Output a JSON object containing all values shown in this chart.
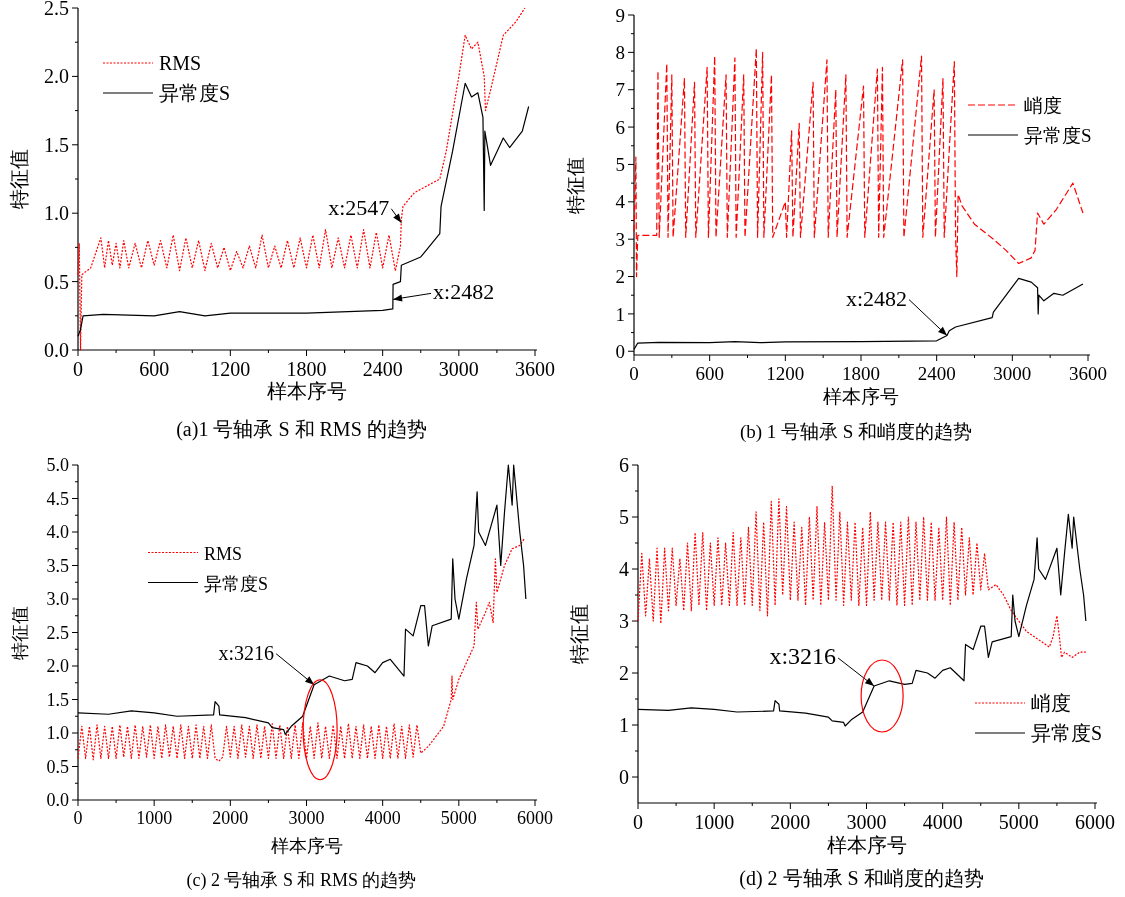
{
  "chart_data": [
    {
      "type": "line",
      "title": "(a)1 号轴承 S 和 RMS 的趋势",
      "xlabel": "样本序号",
      "ylabel": "特征值",
      "xlim": [
        0,
        3600
      ],
      "xticks": [
        0,
        600,
        1200,
        1800,
        2400,
        3000,
        3600
      ],
      "ylim": [
        0,
        2.5
      ],
      "yticks": [
        {
          "value": 0,
          "label": "0.0"
        },
        0.5,
        {
          "value": 1,
          "label": "1.0"
        },
        1.5,
        {
          "value": 2,
          "label": "2.0"
        },
        2.5
      ],
      "legend": "top left",
      "grid": false,
      "annotations": [
        {
          "text": "x:2547",
          "x": 2547,
          "y": 0.93
        },
        {
          "text": "x:2482",
          "x": 2482,
          "y": 0.37
        }
      ],
      "series": [
        {
          "name": "RMS",
          "color": "#ff0000",
          "line_style": "dotted",
          "x": [
            0,
            10,
            20,
            30,
            100,
            180,
            210,
            240,
            270,
            300,
            330,
            360,
            400,
            450,
            500,
            550,
            600,
            650,
            700,
            750,
            800,
            850,
            900,
            950,
            1000,
            1050,
            1100,
            1150,
            1200,
            1250,
            1300,
            1350,
            1400,
            1450,
            1500,
            1550,
            1600,
            1650,
            1700,
            1750,
            1800,
            1850,
            1900,
            1950,
            2000,
            2050,
            2100,
            2150,
            2200,
            2250,
            2300,
            2350,
            2400,
            2450,
            2500,
            2540,
            2547,
            2560,
            2650,
            2750,
            2850,
            2900,
            3000,
            3050,
            3100,
            3150,
            3200,
            3210,
            3250,
            3350,
            3450,
            3520
          ],
          "values": [
            0.55,
            0.78,
            0.0,
            0.55,
            0.6,
            0.82,
            0.6,
            0.8,
            0.62,
            0.78,
            0.6,
            0.8,
            0.6,
            0.78,
            0.6,
            0.8,
            0.62,
            0.8,
            0.6,
            0.84,
            0.58,
            0.82,
            0.6,
            0.8,
            0.58,
            0.78,
            0.6,
            0.75,
            0.58,
            0.72,
            0.6,
            0.76,
            0.6,
            0.84,
            0.6,
            0.76,
            0.6,
            0.8,
            0.6,
            0.82,
            0.6,
            0.84,
            0.6,
            0.88,
            0.6,
            0.82,
            0.6,
            0.84,
            0.6,
            0.88,
            0.6,
            0.86,
            0.6,
            0.84,
            0.58,
            0.76,
            0.95,
            1.05,
            1.15,
            1.2,
            1.25,
            1.45,
            2.0,
            2.3,
            2.2,
            2.25,
            2.0,
            1.75,
            1.9,
            2.3,
            2.4,
            2.5
          ]
        },
        {
          "name": "异常度S",
          "color": "#000000",
          "line_style": "solid",
          "x": [
            0,
            20,
            40,
            200,
            600,
            800,
            1000,
            1200,
            1800,
            2400,
            2480,
            2482,
            2540,
            2547,
            2700,
            2850,
            2860,
            2950,
            3050,
            3100,
            3150,
            3190,
            3200,
            3205,
            3250,
            3300,
            3350,
            3400,
            3500,
            3550
          ],
          "values": [
            0.1,
            0.15,
            0.25,
            0.26,
            0.25,
            0.28,
            0.25,
            0.27,
            0.27,
            0.29,
            0.3,
            0.48,
            0.5,
            0.62,
            0.68,
            0.85,
            1.05,
            1.45,
            1.95,
            1.85,
            1.88,
            1.7,
            1.02,
            1.6,
            1.35,
            1.45,
            1.55,
            1.48,
            1.6,
            1.78
          ]
        }
      ]
    },
    {
      "type": "line",
      "title": "(b) 1 号轴承 S 和峭度的趋势",
      "xlabel": "样本序号",
      "ylabel": "特征值",
      "xlim": [
        0,
        3600
      ],
      "xticks": [
        0,
        600,
        1200,
        1800,
        2400,
        3000,
        3600
      ],
      "ylim": [
        -0.1,
        9
      ],
      "yticks": [
        0,
        1,
        2,
        3,
        4,
        5,
        6,
        7,
        8,
        9
      ],
      "legend": "right",
      "grid": false,
      "annotations": [
        {
          "text": "x:2482",
          "x": 2482,
          "y": 0.42
        }
      ],
      "series": [
        {
          "name": "峭度",
          "color": "#ff0000",
          "line_style": "dashed",
          "x": [
            0,
            15,
            20,
            30,
            180,
            190,
            200,
            260,
            270,
            300,
            310,
            400,
            410,
            480,
            490,
            580,
            590,
            640,
            650,
            730,
            740,
            800,
            810,
            870,
            880,
            970,
            980,
            1020,
            1030,
            1090,
            1100,
            1200,
            1210,
            1250,
            1260,
            1310,
            1320,
            1420,
            1430,
            1530,
            1540,
            1600,
            1610,
            1680,
            1690,
            1820,
            1830,
            1930,
            1940,
            1970,
            1980,
            2130,
            2140,
            2280,
            2290,
            2380,
            2390,
            2450,
            2460,
            2540,
            2550,
            2560,
            2570,
            2600,
            2700,
            2850,
            2950,
            3050,
            3150,
            3180,
            3200,
            3250,
            3350,
            3480,
            3560
          ],
          "values": [
            3.2,
            5.2,
            2.0,
            3.1,
            3.1,
            7.5,
            3.05,
            7.7,
            3.05,
            7.4,
            3.05,
            7.3,
            3.05,
            7.2,
            3.05,
            7.6,
            3.05,
            7.9,
            3.05,
            7.4,
            3.05,
            7.85,
            3.05,
            7.4,
            3.05,
            8.1,
            3.05,
            8.0,
            3.05,
            7.4,
            3.05,
            4.0,
            3.05,
            5.9,
            3.05,
            6.1,
            3.05,
            7.2,
            3.05,
            7.8,
            3.05,
            7.0,
            3.05,
            7.4,
            3.05,
            7.1,
            3.05,
            7.55,
            3.05,
            7.6,
            3.05,
            7.8,
            3.05,
            7.9,
            3.05,
            7.0,
            3.05,
            7.3,
            3.05,
            7.75,
            3.05,
            2.0,
            4.2,
            3.9,
            3.4,
            3.0,
            2.7,
            2.35,
            2.5,
            2.7,
            3.7,
            3.4,
            3.8,
            4.5,
            3.7
          ]
        },
        {
          "name": "异常度S",
          "color": "#000000",
          "line_style": "solid",
          "x": [
            0,
            30,
            200,
            600,
            800,
            1000,
            1200,
            1800,
            2400,
            2482,
            2500,
            2550,
            2840,
            2850,
            3050,
            3150,
            3200,
            3205,
            3210,
            3250,
            3330,
            3400,
            3560
          ],
          "values": [
            0.05,
            0.22,
            0.24,
            0.23,
            0.26,
            0.23,
            0.25,
            0.26,
            0.28,
            0.42,
            0.55,
            0.65,
            0.9,
            1.05,
            1.95,
            1.85,
            1.7,
            1.0,
            1.5,
            1.35,
            1.55,
            1.5,
            1.8
          ]
        }
      ]
    },
    {
      "type": "line",
      "title": "(c) 2 号轴承 S 和 RMS 的趋势",
      "xlabel": "样本序号",
      "ylabel": "特征值",
      "xlim": [
        0,
        6000
      ],
      "xticks": [
        0,
        1000,
        2000,
        3000,
        4000,
        5000,
        6000
      ],
      "ylim": [
        0,
        5
      ],
      "yticks": [
        {
          "value": 0,
          "label": "0.0"
        },
        0.5,
        {
          "value": 1,
          "label": "1.0"
        },
        1.5,
        {
          "value": 2,
          "label": "2.0"
        },
        2.5,
        {
          "value": 3,
          "label": "3.0"
        },
        3.5,
        {
          "value": 4,
          "label": "4.0"
        },
        4.5,
        {
          "value": 5,
          "label": "5.0"
        }
      ],
      "legend": "left",
      "grid": false,
      "annotations": [
        {
          "text": "x:3216",
          "x": 3100,
          "y": 1.72
        }
      ],
      "series": [
        {
          "name": "RMS",
          "color": "#ff0000",
          "line_style": "dotted",
          "x": [
            0,
            50,
            100,
            150,
            200,
            250,
            300,
            350,
            400,
            450,
            500,
            550,
            600,
            650,
            700,
            750,
            800,
            850,
            900,
            950,
            1000,
            1050,
            1100,
            1150,
            1200,
            1250,
            1300,
            1350,
            1400,
            1450,
            1500,
            1550,
            1600,
            1650,
            1700,
            1750,
            1800,
            1850,
            1900,
            1950,
            2000,
            2050,
            2100,
            2150,
            2200,
            2250,
            2300,
            2350,
            2400,
            2450,
            2500,
            2550,
            2600,
            2650,
            2700,
            2750,
            2800,
            2850,
            2900,
            2950,
            3000,
            3050,
            3100,
            3150,
            3200,
            3250,
            3300,
            3350,
            3400,
            3450,
            3500,
            3550,
            3600,
            3650,
            3700,
            3750,
            3800,
            3850,
            3900,
            3950,
            4000,
            4050,
            4100,
            4150,
            4200,
            4250,
            4300,
            4350,
            4400,
            4450,
            4500,
            4600,
            4800,
            4900,
            4910,
            4920,
            5000,
            5200,
            5230,
            5250,
            5350,
            5400,
            5450,
            5480,
            5500,
            5600,
            5700,
            5800,
            5860
          ],
          "values": [
            0.62,
            1.1,
            0.62,
            1.1,
            0.6,
            1.12,
            0.62,
            1.1,
            0.62,
            1.1,
            0.62,
            1.12,
            0.64,
            1.1,
            0.62,
            1.12,
            0.62,
            1.1,
            0.64,
            1.12,
            0.62,
            1.1,
            0.62,
            1.12,
            0.64,
            1.1,
            0.62,
            1.12,
            0.62,
            1.1,
            0.62,
            1.12,
            0.62,
            1.1,
            0.62,
            1.12,
            0.62,
            0.58,
            0.64,
            1.1,
            0.64,
            1.1,
            0.62,
            1.12,
            0.64,
            1.1,
            0.62,
            1.12,
            0.62,
            1.1,
            0.62,
            1.14,
            0.62,
            1.12,
            0.62,
            1.1,
            0.62,
            1.12,
            0.62,
            1.15,
            0.62,
            1.1,
            0.62,
            1.15,
            0.62,
            1.1,
            0.62,
            1.12,
            0.62,
            1.1,
            0.62,
            1.14,
            0.62,
            1.1,
            0.62,
            1.12,
            0.62,
            1.1,
            0.62,
            1.12,
            0.62,
            1.1,
            0.62,
            1.14,
            0.62,
            1.1,
            0.62,
            1.12,
            0.64,
            1.12,
            0.7,
            0.8,
            1.1,
            1.5,
            1.85,
            1.5,
            1.8,
            2.3,
            2.95,
            2.55,
            2.8,
            2.95,
            2.65,
            3.6,
            3.1,
            3.5,
            3.75,
            3.8,
            3.9
          ]
        },
        {
          "name": "异常度S",
          "color": "#000000",
          "line_style": "solid",
          "x": [
            0,
            400,
            700,
            1000,
            1300,
            1780,
            1800,
            1850,
            1860,
            2200,
            2500,
            2550,
            2700,
            2720,
            2800,
            2950,
            3100,
            3300,
            3500,
            3600,
            3650,
            3800,
            3900,
            4000,
            4100,
            4280,
            4300,
            4400,
            4500,
            4550,
            4600,
            4650,
            4900,
            4920,
            4950,
            5000,
            5100,
            5200,
            5240,
            5260,
            5350,
            5500,
            5550,
            5600,
            5650,
            5700,
            5720,
            5800,
            5850,
            5880
          ],
          "values": [
            1.3,
            1.28,
            1.33,
            1.3,
            1.25,
            1.27,
            1.47,
            1.4,
            1.27,
            1.23,
            1.15,
            1.08,
            1.05,
            0.98,
            1.1,
            1.25,
            1.72,
            1.85,
            1.78,
            1.8,
            2.05,
            2.0,
            1.9,
            2.05,
            2.1,
            1.85,
            2.55,
            2.45,
            2.9,
            2.9,
            2.3,
            2.6,
            2.7,
            3.6,
            3.0,
            2.7,
            3.3,
            3.8,
            4.6,
            4.0,
            3.8,
            4.4,
            3.5,
            4.3,
            5.0,
            4.4,
            5.0,
            4.0,
            3.5,
            3.0
          ]
        }
      ]
    },
    {
      "type": "line",
      "title": "(d) 2 号轴承 S 和峭度的趋势",
      "xlabel": "样本序号",
      "ylabel": "特征值",
      "xlim": [
        0,
        6000
      ],
      "xticks": [
        0,
        1000,
        2000,
        3000,
        4000,
        5000,
        6000
      ],
      "ylim": [
        -0.5,
        6
      ],
      "yticks": [
        0,
        1,
        2,
        3,
        4,
        5,
        6
      ],
      "legend": "bottom right",
      "grid": false,
      "annotations": [
        {
          "text": "x:3216",
          "x": 3100,
          "y": 1.75
        }
      ],
      "series": [
        {
          "name": "峭度",
          "color": "#ff0000",
          "line_style": "dotted",
          "x": [
            0,
            50,
            100,
            150,
            200,
            250,
            300,
            350,
            400,
            450,
            500,
            550,
            600,
            650,
            700,
            750,
            800,
            850,
            900,
            950,
            1000,
            1050,
            1100,
            1150,
            1200,
            1250,
            1300,
            1350,
            1400,
            1450,
            1500,
            1550,
            1600,
            1650,
            1700,
            1750,
            1800,
            1850,
            1900,
            1950,
            2000,
            2050,
            2100,
            2150,
            2200,
            2250,
            2300,
            2350,
            2400,
            2450,
            2500,
            2550,
            2600,
            2650,
            2700,
            2750,
            2800,
            2850,
            2900,
            2950,
            3000,
            3050,
            3100,
            3150,
            3200,
            3250,
            3300,
            3350,
            3400,
            3450,
            3500,
            3550,
            3600,
            3650,
            3700,
            3750,
            3800,
            3850,
            3900,
            3950,
            4000,
            4050,
            4100,
            4150,
            4200,
            4250,
            4300,
            4350,
            4400,
            4450,
            4500,
            4550,
            4600,
            4700,
            4800,
            4900,
            5000,
            5100,
            5200,
            5300,
            5400,
            5450,
            5500,
            5540,
            5560,
            5600,
            5700,
            5800,
            5880
          ],
          "values": [
            3.0,
            4.3,
            3.1,
            4.2,
            3.0,
            4.4,
            2.95,
            4.4,
            3.2,
            4.4,
            3.3,
            4.2,
            3.2,
            4.5,
            3.2,
            4.7,
            3.3,
            4.7,
            3.2,
            4.5,
            3.3,
            4.6,
            3.3,
            4.5,
            3.3,
            4.7,
            3.3,
            4.6,
            3.3,
            4.8,
            3.3,
            5.1,
            3.2,
            4.9,
            3.1,
            5.3,
            3.3,
            5.35,
            3.5,
            5.2,
            3.4,
            4.9,
            3.4,
            4.8,
            3.3,
            5.0,
            3.4,
            5.2,
            3.3,
            4.9,
            3.4,
            5.6,
            3.4,
            5.1,
            3.3,
            4.9,
            3.4,
            4.9,
            3.3,
            4.8,
            3.3,
            5.1,
            3.4,
            4.9,
            3.4,
            4.9,
            3.4,
            4.9,
            3.3,
            4.9,
            3.3,
            5.0,
            3.3,
            4.9,
            3.4,
            5.0,
            3.4,
            4.9,
            3.4,
            4.8,
            3.4,
            5.0,
            3.3,
            4.9,
            3.4,
            4.8,
            3.5,
            4.6,
            3.5,
            4.5,
            3.6,
            4.3,
            3.6,
            3.7,
            3.5,
            3.2,
            3.0,
            2.8,
            2.7,
            2.6,
            2.5,
            2.7,
            3.1,
            2.6,
            2.3,
            2.4,
            2.3,
            2.4,
            2.4
          ]
        },
        {
          "name": "异常度S",
          "color": "#000000",
          "line_style": "solid",
          "x": [
            0,
            400,
            700,
            1000,
            1300,
            1780,
            1800,
            1850,
            1860,
            2200,
            2500,
            2550,
            2700,
            2720,
            2800,
            2950,
            3100,
            3300,
            3500,
            3600,
            3650,
            3800,
            3900,
            4000,
            4100,
            4280,
            4300,
            4400,
            4500,
            4550,
            4600,
            4650,
            4900,
            4920,
            4950,
            5000,
            5100,
            5200,
            5240,
            5260,
            5350,
            5500,
            5550,
            5600,
            5650,
            5700,
            5720,
            5800,
            5850,
            5880
          ],
          "values": [
            1.3,
            1.28,
            1.33,
            1.3,
            1.25,
            1.27,
            1.47,
            1.4,
            1.27,
            1.23,
            1.15,
            1.08,
            1.05,
            0.98,
            1.1,
            1.25,
            1.75,
            1.85,
            1.78,
            1.8,
            2.05,
            2.0,
            1.9,
            2.05,
            2.1,
            1.85,
            2.55,
            2.45,
            2.9,
            2.9,
            2.3,
            2.6,
            2.7,
            3.5,
            3.0,
            2.7,
            3.3,
            3.8,
            4.6,
            4.0,
            3.8,
            4.4,
            3.5,
            4.3,
            5.05,
            4.4,
            5.0,
            4.0,
            3.5,
            3.0
          ]
        }
      ]
    }
  ]
}
